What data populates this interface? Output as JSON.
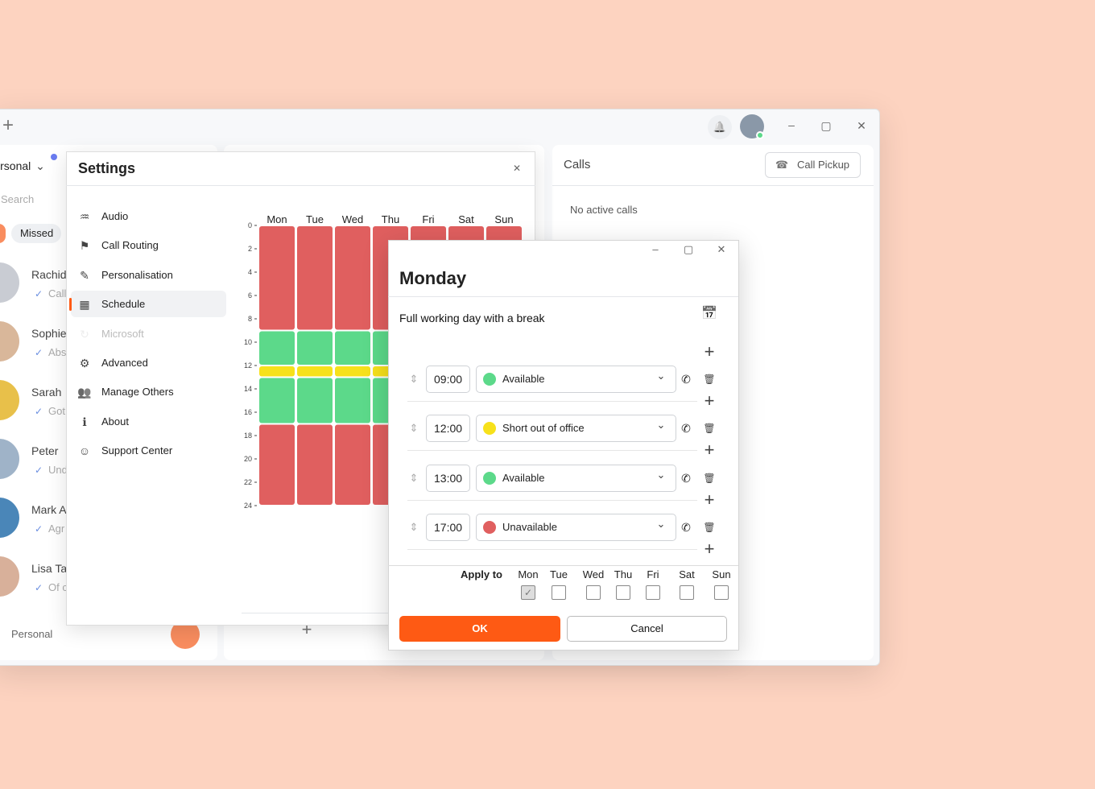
{
  "app": {
    "left_panel": {
      "account": "Personal",
      "search_placeholder": "Search",
      "filter": "Missed",
      "contacts": [
        {
          "name": "Rachid",
          "preview": "Call",
          "color": "#c9ccd3"
        },
        {
          "name": "Sophie",
          "preview": "Abs",
          "color": "#d9b79a"
        },
        {
          "name": "Sarah",
          "preview": "Got",
          "color": "#e8c04a"
        },
        {
          "name": "Peter",
          "preview": "Und",
          "color": "#9fb3c8"
        },
        {
          "name": "Mark A",
          "preview": "Agr",
          "color": "#4a86b8"
        },
        {
          "name": "Lisa Ta",
          "preview": "Of c",
          "color": "#d8b09a"
        }
      ],
      "footer_account": "Personal"
    },
    "settings": {
      "title": "Settings",
      "menu": [
        {
          "label": "Audio"
        },
        {
          "label": "Call Routing"
        },
        {
          "label": "Personalisation"
        },
        {
          "label": "Schedule",
          "selected": true
        },
        {
          "label": "Microsoft",
          "disabled": true
        },
        {
          "label": "Advanced"
        },
        {
          "label": "Manage Others"
        },
        {
          "label": "About"
        },
        {
          "label": "Support Center"
        }
      ],
      "schedule": {
        "days": [
          "Mon",
          "Tue",
          "Wed",
          "Thu",
          "Fri",
          "Sat",
          "Sun"
        ],
        "hour_range": [
          0,
          24
        ],
        "hour_ticks": [
          0,
          2,
          4,
          6,
          8,
          10,
          12,
          14,
          16,
          18,
          20,
          22,
          24
        ],
        "segments": [
          {
            "start": 0,
            "end": 9,
            "color": "#e05f5f"
          },
          {
            "start": 9,
            "end": 12,
            "color": "#5cd98a"
          },
          {
            "start": 12,
            "end": 13,
            "color": "#f7e11b"
          },
          {
            "start": 13,
            "end": 17,
            "color": "#5cd98a"
          },
          {
            "start": 17,
            "end": 24,
            "color": "#e05f5f"
          }
        ]
      }
    },
    "calls": {
      "title": "Calls",
      "button": "Call Pickup",
      "empty": "No active calls"
    },
    "dialog": {
      "title": "Monday",
      "description": "Full working day with a break",
      "rows": [
        {
          "time": "09:00",
          "status": "Available",
          "color": "#5cd98a"
        },
        {
          "time": "12:00",
          "status": "Short out of office",
          "color": "#f7e11b"
        },
        {
          "time": "13:00",
          "status": "Available",
          "color": "#5cd98a"
        },
        {
          "time": "17:00",
          "status": "Unavailable",
          "color": "#e05f5f"
        }
      ],
      "apply_label": "Apply to",
      "apply_days": [
        {
          "day": "Mon",
          "checked": true
        },
        {
          "day": "Tue",
          "checked": false
        },
        {
          "day": "Wed",
          "checked": false
        },
        {
          "day": "Thu",
          "checked": false
        },
        {
          "day": "Fri",
          "checked": false
        },
        {
          "day": "Sat",
          "checked": false
        },
        {
          "day": "Sun",
          "checked": false
        }
      ],
      "ok": "OK",
      "cancel": "Cancel"
    }
  }
}
